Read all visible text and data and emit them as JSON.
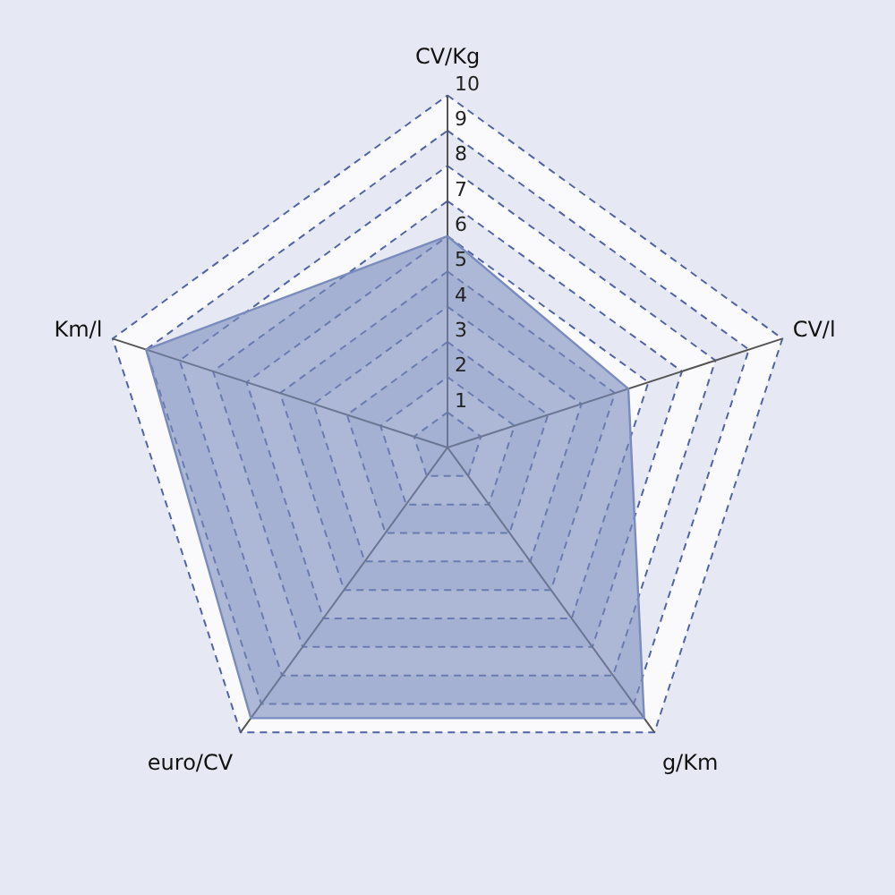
{
  "chart_data": {
    "type": "radar",
    "categories": [
      "CV/Kg",
      "CV/l",
      "g/Km",
      "euro/CV",
      "Km/l"
    ],
    "series": [
      {
        "color": "#7a8cbd",
        "values": [
          6,
          5.4,
          9.5,
          9.5,
          9
        ]
      }
    ],
    "ylim": [
      0,
      10
    ],
    "yticks": [
      1,
      2,
      3,
      4,
      5,
      6,
      7,
      8,
      9,
      10
    ],
    "grid": true,
    "marker": "none",
    "line_style": "solid"
  }
}
